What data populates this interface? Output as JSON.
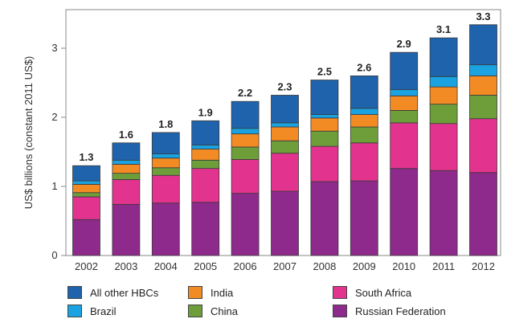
{
  "chart_data": {
    "type": "bar",
    "stacked": true,
    "title": "",
    "xlabel": "",
    "ylabel": "US$ billions (constant 2011 US$)",
    "ylim": [
      0,
      3.5
    ],
    "yticks": [
      0,
      1,
      2,
      3
    ],
    "grid": false,
    "legend_position": "bottom",
    "categories": [
      "2002",
      "2003",
      "2004",
      "2005",
      "2006",
      "2007",
      "2008",
      "2009",
      "2010",
      "2011",
      "2012"
    ],
    "totals": [
      "1.3",
      "1.6",
      "1.8",
      "1.9",
      "2.2",
      "2.3",
      "2.5",
      "2.6",
      "2.9",
      "3.1",
      "3.3"
    ],
    "series": [
      {
        "name": "Russian Federation",
        "color": "#8e2a8b",
        "values": [
          0.52,
          0.74,
          0.76,
          0.77,
          0.9,
          0.93,
          1.07,
          1.08,
          1.26,
          1.23,
          1.2
        ]
      },
      {
        "name": "South Africa",
        "color": "#e2338e",
        "values": [
          0.33,
          0.36,
          0.4,
          0.49,
          0.49,
          0.55,
          0.51,
          0.55,
          0.66,
          0.68,
          0.78
        ]
      },
      {
        "name": "China",
        "color": "#6e9e3a",
        "values": [
          0.06,
          0.09,
          0.11,
          0.12,
          0.18,
          0.18,
          0.22,
          0.23,
          0.18,
          0.28,
          0.34
        ]
      },
      {
        "name": "India",
        "color": "#f28b24",
        "values": [
          0.12,
          0.13,
          0.14,
          0.16,
          0.19,
          0.2,
          0.19,
          0.18,
          0.21,
          0.25,
          0.28
        ]
      },
      {
        "name": "Brazil",
        "color": "#1aa3e0",
        "values": [
          0.05,
          0.06,
          0.06,
          0.06,
          0.08,
          0.06,
          0.05,
          0.09,
          0.09,
          0.15,
          0.16
        ]
      },
      {
        "name": "All other HBCs",
        "color": "#1f63ad",
        "values": [
          0.22,
          0.25,
          0.31,
          0.35,
          0.39,
          0.4,
          0.5,
          0.47,
          0.54,
          0.56,
          0.58
        ]
      }
    ]
  },
  "legend": {
    "items": [
      {
        "label": "All other HBCs",
        "color": "#1f63ad"
      },
      {
        "label": "Brazil",
        "color": "#1aa3e0"
      },
      {
        "label": "India",
        "color": "#f28b24"
      },
      {
        "label": "China",
        "color": "#6e9e3a"
      },
      {
        "label": "South Africa",
        "color": "#e2338e"
      },
      {
        "label": "Russian Federation",
        "color": "#8e2a8b"
      }
    ]
  }
}
